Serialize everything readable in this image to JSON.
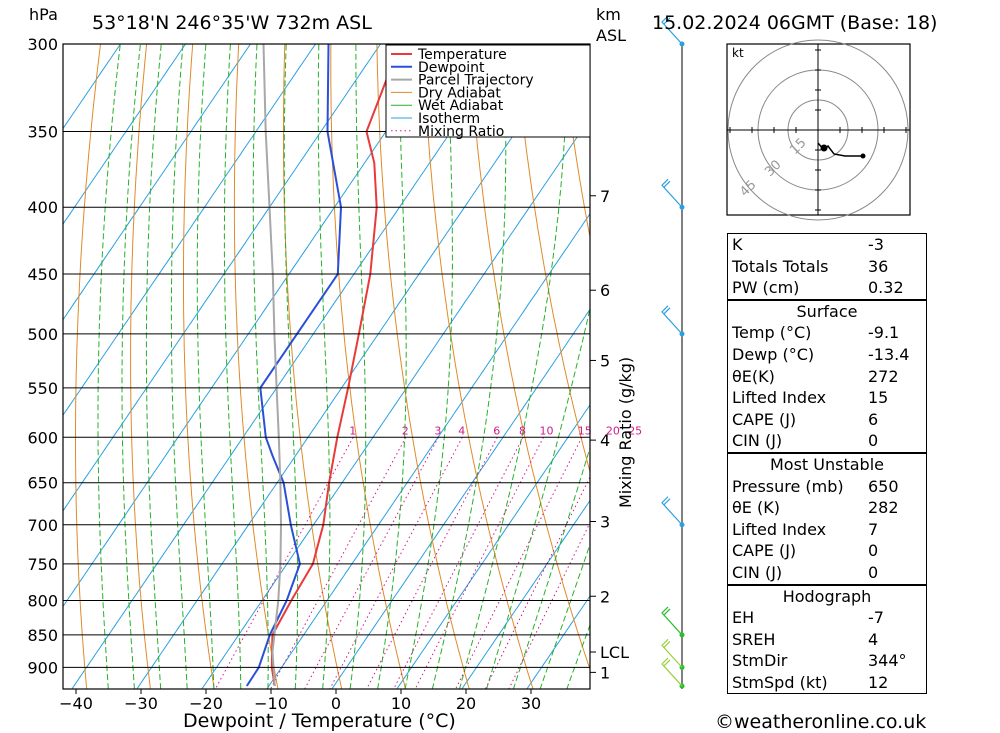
{
  "header": {
    "location": "53°18'N  246°35'W  732m  ASL",
    "datetime": "15.02.2024  06GMT  (Base: 18)",
    "pressure_unit": "hPa",
    "height_unit_line1": "km",
    "height_unit_line2": "ASL"
  },
  "chart_data": {
    "type": "skew-t",
    "xlabel": "Dewpoint / Temperature (°C)",
    "ylabel_right": "Mixing Ratio (g/kg)",
    "x_ticks": [
      -40,
      -30,
      -20,
      -10,
      0,
      10,
      20,
      30
    ],
    "pressure_levels": [
      300,
      350,
      400,
      450,
      500,
      550,
      600,
      650,
      700,
      750,
      800,
      850,
      900
    ],
    "km_ticks": [
      {
        "label": "7",
        "p": 392
      },
      {
        "label": "6",
        "p": 463
      },
      {
        "label": "5",
        "p": 524
      },
      {
        "label": "4",
        "p": 603
      },
      {
        "label": "3",
        "p": 696
      },
      {
        "label": "2",
        "p": 794
      },
      {
        "label": "LCL",
        "p": 876
      },
      {
        "label": "1",
        "p": 908
      }
    ],
    "mixing_ratio_labels": [
      "1",
      "2",
      "3",
      "4",
      "6",
      "8",
      "10",
      "15",
      "20",
      "25"
    ],
    "legend": [
      "Temperature",
      "Dewpoint",
      "Parcel Trajectory",
      "Dry Adiabat",
      "Wet Adiabat",
      "Isotherm",
      "Mixing Ratio"
    ],
    "series": [
      {
        "name": "Temperature",
        "color": "#e83a3a",
        "points": [
          [
            930,
            -9.1
          ],
          [
            900,
            -11.5
          ],
          [
            850,
            -14.8
          ],
          [
            800,
            -15.5
          ],
          [
            750,
            -16.0
          ],
          [
            700,
            -18.5
          ],
          [
            650,
            -22.0
          ],
          [
            600,
            -25.5
          ],
          [
            550,
            -29.0
          ],
          [
            500,
            -33.0
          ],
          [
            450,
            -37.5
          ],
          [
            400,
            -43.5
          ],
          [
            370,
            -48.5
          ],
          [
            350,
            -53.0
          ],
          [
            330,
            -54.5
          ],
          [
            300,
            -57.0
          ]
        ]
      },
      {
        "name": "Dewpoint",
        "color": "#2a4fd8",
        "points": [
          [
            930,
            -13.4
          ],
          [
            900,
            -13.5
          ],
          [
            850,
            -15.2
          ],
          [
            800,
            -16.2
          ],
          [
            750,
            -18.0
          ],
          [
            700,
            -23.5
          ],
          [
            650,
            -29.0
          ],
          [
            620,
            -33.5
          ],
          [
            600,
            -36.5
          ],
          [
            550,
            -42.5
          ],
          [
            500,
            -42.5
          ],
          [
            450,
            -42.5
          ],
          [
            400,
            -49.0
          ],
          [
            350,
            -59.0
          ],
          [
            300,
            -68.0
          ]
        ]
      },
      {
        "name": "Parcel Trajectory",
        "color": "#a8a8a8",
        "points": [
          [
            930,
            -9.1
          ],
          [
            876,
            -13.0
          ],
          [
            850,
            -14.5
          ],
          [
            800,
            -17.5
          ],
          [
            750,
            -21.0
          ],
          [
            700,
            -25.0
          ],
          [
            650,
            -29.5
          ],
          [
            600,
            -34.5
          ],
          [
            550,
            -40.0
          ],
          [
            500,
            -46.0
          ],
          [
            450,
            -52.5
          ],
          [
            400,
            -60.0
          ],
          [
            350,
            -68.5
          ],
          [
            300,
            -78.0
          ]
        ]
      }
    ],
    "wind_barbs_p": [
      300,
      400,
      500,
      700,
      850,
      900,
      930
    ],
    "hodograph": {
      "unit": "kt",
      "rings": [
        "15",
        "30",
        "45"
      ]
    }
  },
  "indices": {
    "K": "-3",
    "Totals Totals": "36",
    "PW (cm)": "0.32"
  },
  "surface": {
    "title": "Surface",
    "rows": [
      {
        "label": "Temp (°C)",
        "value": "-9.1"
      },
      {
        "label": "Dewp (°C)",
        "value": "-13.4"
      },
      {
        "label": "θE(K)",
        "value": "272"
      },
      {
        "label": "Lifted Index",
        "value": "15"
      },
      {
        "label": "CAPE (J)",
        "value": "6"
      },
      {
        "label": "CIN (J)",
        "value": "0"
      }
    ]
  },
  "most_unstable": {
    "title": "Most Unstable",
    "rows": [
      {
        "label": "Pressure (mb)",
        "value": "650"
      },
      {
        "label": "θE (K)",
        "value": "282"
      },
      {
        "label": "Lifted Index",
        "value": "7"
      },
      {
        "label": "CAPE (J)",
        "value": "0"
      },
      {
        "label": "CIN (J)",
        "value": "0"
      }
    ]
  },
  "hodograph_table": {
    "title": "Hodograph",
    "rows": [
      {
        "label": "EH",
        "value": "-7"
      },
      {
        "label": "SREH",
        "value": "4"
      },
      {
        "label": "StmDir",
        "value": "344°"
      },
      {
        "label": "StmSpd (kt)",
        "value": "12"
      }
    ]
  },
  "footer": {
    "credit": "©weatheronline.co.uk"
  },
  "colors": {
    "temperature": "#e83a3a",
    "dewpoint": "#2a4fd8",
    "parcel": "#a8a8a8",
    "dry_adiabat": "#e08a2a",
    "wet_adiabat": "#27b02a",
    "isotherm": "#2aa0e0",
    "mixing_ratio": "#d01b8c",
    "wind": "#2aa0e0"
  }
}
